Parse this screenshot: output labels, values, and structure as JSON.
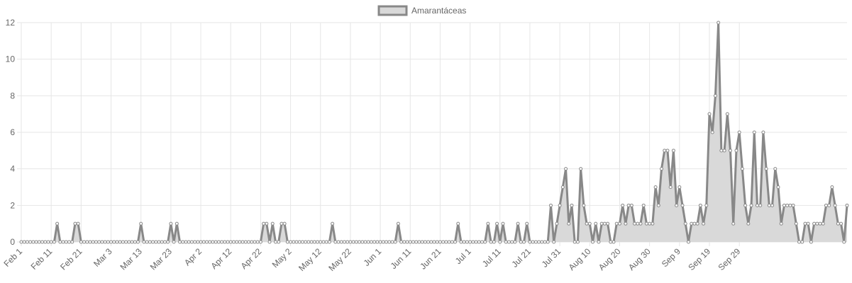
{
  "chart_data": {
    "type": "area",
    "legend": {
      "position": "top-center"
    },
    "grid": true,
    "series": [
      {
        "name": "Amarantáceas",
        "stroke": "#888888",
        "fill": "#d9d9d9",
        "values": [
          0,
          0,
          0,
          0,
          0,
          0,
          0,
          0,
          0,
          0,
          0,
          0,
          1,
          0,
          0,
          0,
          0,
          0,
          1,
          1,
          0,
          0,
          0,
          0,
          0,
          0,
          0,
          0,
          0,
          0,
          0,
          0,
          0,
          0,
          0,
          0,
          0,
          0,
          0,
          0,
          1,
          0,
          0,
          0,
          0,
          0,
          0,
          0,
          0,
          0,
          1,
          0,
          1,
          0,
          0,
          0,
          0,
          0,
          0,
          0,
          0,
          0,
          0,
          0,
          0,
          0,
          0,
          0,
          0,
          0,
          0,
          0,
          0,
          0,
          0,
          0,
          0,
          0,
          0,
          0,
          0,
          1,
          1,
          0,
          1,
          0,
          0,
          1,
          1,
          0,
          0,
          0,
          0,
          0,
          0,
          0,
          0,
          0,
          0,
          0,
          0,
          0,
          0,
          0,
          1,
          0,
          0,
          0,
          0,
          0,
          0,
          0,
          0,
          0,
          0,
          0,
          0,
          0,
          0,
          0,
          0,
          0,
          0,
          0,
          0,
          0,
          1,
          0,
          0,
          0,
          0,
          0,
          0,
          0,
          0,
          0,
          0,
          0,
          0,
          0,
          0,
          0,
          0,
          0,
          0,
          0,
          1,
          0,
          0,
          0,
          0,
          0,
          0,
          0,
          0,
          0,
          1,
          0,
          0,
          1,
          0,
          1,
          0,
          0,
          0,
          0,
          1,
          0,
          0,
          1,
          0,
          0,
          0,
          0,
          0,
          0,
          0,
          2,
          0,
          1,
          2,
          3,
          4,
          1,
          2,
          0,
          0,
          4,
          2,
          1,
          1,
          0,
          1,
          0,
          1,
          1,
          1,
          0,
          0,
          1,
          1,
          2,
          1,
          2,
          2,
          1,
          1,
          1,
          2,
          1,
          1,
          1,
          3,
          2,
          4,
          5,
          5,
          3,
          5,
          2,
          3,
          2,
          1,
          0,
          1,
          1,
          1,
          2,
          1,
          2,
          7,
          6,
          8,
          12,
          5,
          5,
          7,
          5,
          1,
          5,
          6,
          4,
          2,
          1,
          2,
          6,
          2,
          2,
          6,
          4,
          2,
          2,
          4,
          3,
          1,
          2,
          2,
          2,
          2,
          1,
          0,
          0,
          1,
          1,
          0,
          1,
          1,
          1,
          1,
          2,
          2,
          3,
          2,
          1,
          1,
          0,
          2
        ]
      }
    ],
    "x_tick_labels": [
      "Feb 1",
      "Feb 11",
      "Feb 21",
      "Mar 3",
      "Mar 13",
      "Mar 23",
      "Apr 2",
      "Apr 12",
      "Apr 22",
      "May 2",
      "May 12",
      "May 22",
      "Jun 1",
      "Jun 11",
      "Jun 21",
      "Jul 1",
      "Jul 11",
      "Jul 21",
      "Jul 31",
      "Aug 10",
      "Aug 20",
      "Aug 30",
      "Sep 9",
      "Sep 19",
      "Sep 29"
    ],
    "x_tick_step_days": 10,
    "y_ticks": [
      0,
      2,
      4,
      6,
      8,
      10,
      12
    ],
    "ylim": [
      0,
      12
    ],
    "xlabel": "",
    "ylabel": ""
  }
}
